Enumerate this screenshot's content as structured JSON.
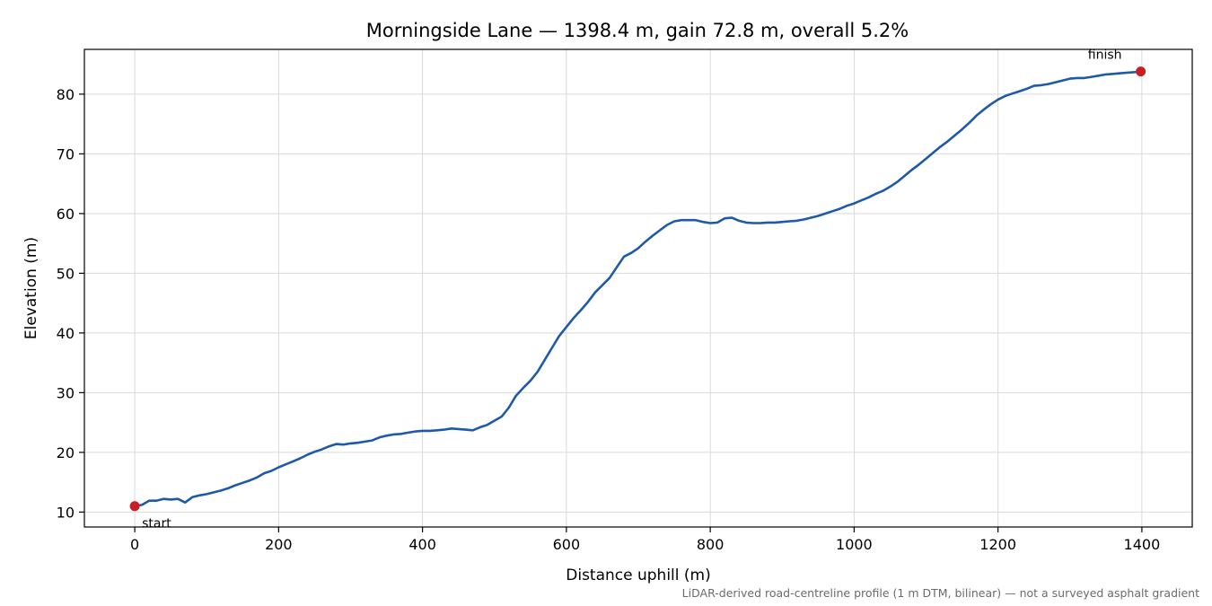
{
  "chart_data": {
    "type": "line",
    "title": "Morningside Lane — 1398.4 m, gain 72.8 m, overall 5.2%",
    "xlabel": "Distance uphill (m)",
    "ylabel": "Elevation (m)",
    "footnote": "LiDAR-derived road-centreline profile (1 m DTM, bilinear) — not a surveyed asphalt gradient",
    "xlim": [
      -70,
      1470
    ],
    "ylim": [
      7.5,
      87.5
    ],
    "xticks": [
      0,
      200,
      400,
      600,
      800,
      1000,
      1200,
      1400
    ],
    "yticks": [
      10,
      20,
      30,
      40,
      50,
      60,
      70,
      80
    ],
    "grid": true,
    "series": [
      {
        "color": "#1f5aa8",
        "x": [
          0,
          10,
          20,
          30,
          40,
          50,
          60,
          70,
          80,
          90,
          100,
          110,
          120,
          130,
          140,
          150,
          160,
          170,
          180,
          190,
          200,
          210,
          220,
          230,
          240,
          250,
          260,
          270,
          280,
          290,
          300,
          310,
          320,
          330,
          340,
          350,
          360,
          370,
          380,
          390,
          400,
          410,
          420,
          430,
          440,
          450,
          460,
          470,
          480,
          490,
          500,
          510,
          520,
          530,
          540,
          550,
          560,
          570,
          580,
          590,
          600,
          610,
          620,
          630,
          640,
          650,
          660,
          670,
          680,
          690,
          700,
          710,
          720,
          730,
          740,
          750,
          760,
          770,
          780,
          790,
          800,
          810,
          820,
          830,
          840,
          850,
          860,
          870,
          880,
          890,
          900,
          910,
          920,
          930,
          940,
          950,
          960,
          970,
          980,
          990,
          1000,
          1010,
          1020,
          1030,
          1040,
          1050,
          1060,
          1070,
          1080,
          1090,
          1100,
          1110,
          1120,
          1130,
          1140,
          1150,
          1160,
          1170,
          1180,
          1190,
          1200,
          1210,
          1220,
          1230,
          1240,
          1250,
          1260,
          1270,
          1280,
          1290,
          1300,
          1310,
          1320,
          1330,
          1340,
          1350,
          1360,
          1370,
          1380,
          1390,
          1398.4
        ],
        "y": [
          11.0,
          11.2,
          11.9,
          11.9,
          12.2,
          12.1,
          12.2,
          11.6,
          12.5,
          12.8,
          13.0,
          13.3,
          13.6,
          14.0,
          14.5,
          14.9,
          15.3,
          15.8,
          16.5,
          16.9,
          17.5,
          18.0,
          18.5,
          19.0,
          19.6,
          20.1,
          20.5,
          21.0,
          21.4,
          21.3,
          21.5,
          21.6,
          21.8,
          22.0,
          22.5,
          22.8,
          23.0,
          23.1,
          23.3,
          23.5,
          23.6,
          23.6,
          23.7,
          23.8,
          24.0,
          23.9,
          23.8,
          23.7,
          24.2,
          24.6,
          25.3,
          26.0,
          27.5,
          29.5,
          30.8,
          32.0,
          33.5,
          35.5,
          37.5,
          39.5,
          41.0,
          42.5,
          43.8,
          45.2,
          46.8,
          48.0,
          49.2,
          51.0,
          52.8,
          53.4,
          54.2,
          55.3,
          56.3,
          57.2,
          58.1,
          58.7,
          58.9,
          58.9,
          58.9,
          58.6,
          58.4,
          58.5,
          59.2,
          59.3,
          58.8,
          58.5,
          58.4,
          58.4,
          58.5,
          58.5,
          58.6,
          58.7,
          58.8,
          59.0,
          59.3,
          59.6,
          60.0,
          60.4,
          60.8,
          61.3,
          61.7,
          62.2,
          62.7,
          63.3,
          63.8,
          64.5,
          65.3,
          66.3,
          67.3,
          68.2,
          69.2,
          70.2,
          71.2,
          72.1,
          73.1,
          74.1,
          75.2,
          76.4,
          77.4,
          78.3,
          79.1,
          79.7,
          80.1,
          80.5,
          80.9,
          81.4,
          81.5,
          81.7,
          82.0,
          82.3,
          82.6,
          82.7,
          82.7,
          82.9,
          83.1,
          83.3,
          83.4,
          83.5,
          83.6,
          83.7,
          83.8
        ]
      }
    ],
    "endpoints": [
      {
        "label": "start",
        "x": 0,
        "y": 11.0
      },
      {
        "label": "finish",
        "x": 1398.4,
        "y": 83.8
      }
    ]
  }
}
